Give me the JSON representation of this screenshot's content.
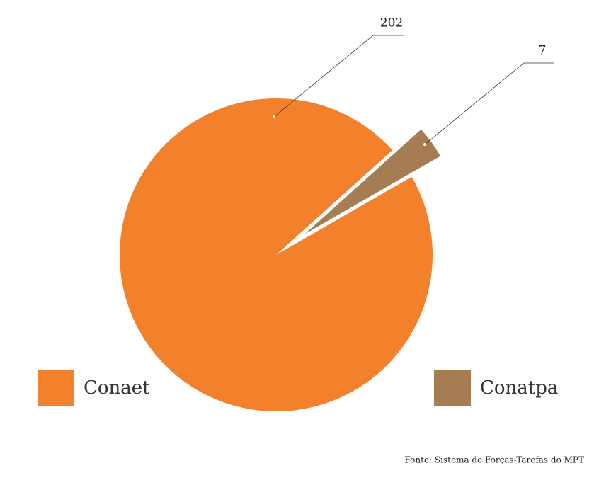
{
  "chart_data": {
    "type": "pie",
    "categories": [
      "Conaet",
      "Conatpa"
    ],
    "values": [
      202,
      7
    ],
    "colors": [
      "#f3802a",
      "#a67c52"
    ],
    "source": "Fonte:  Sistema de Forças-Tarefas do MPT"
  }
}
